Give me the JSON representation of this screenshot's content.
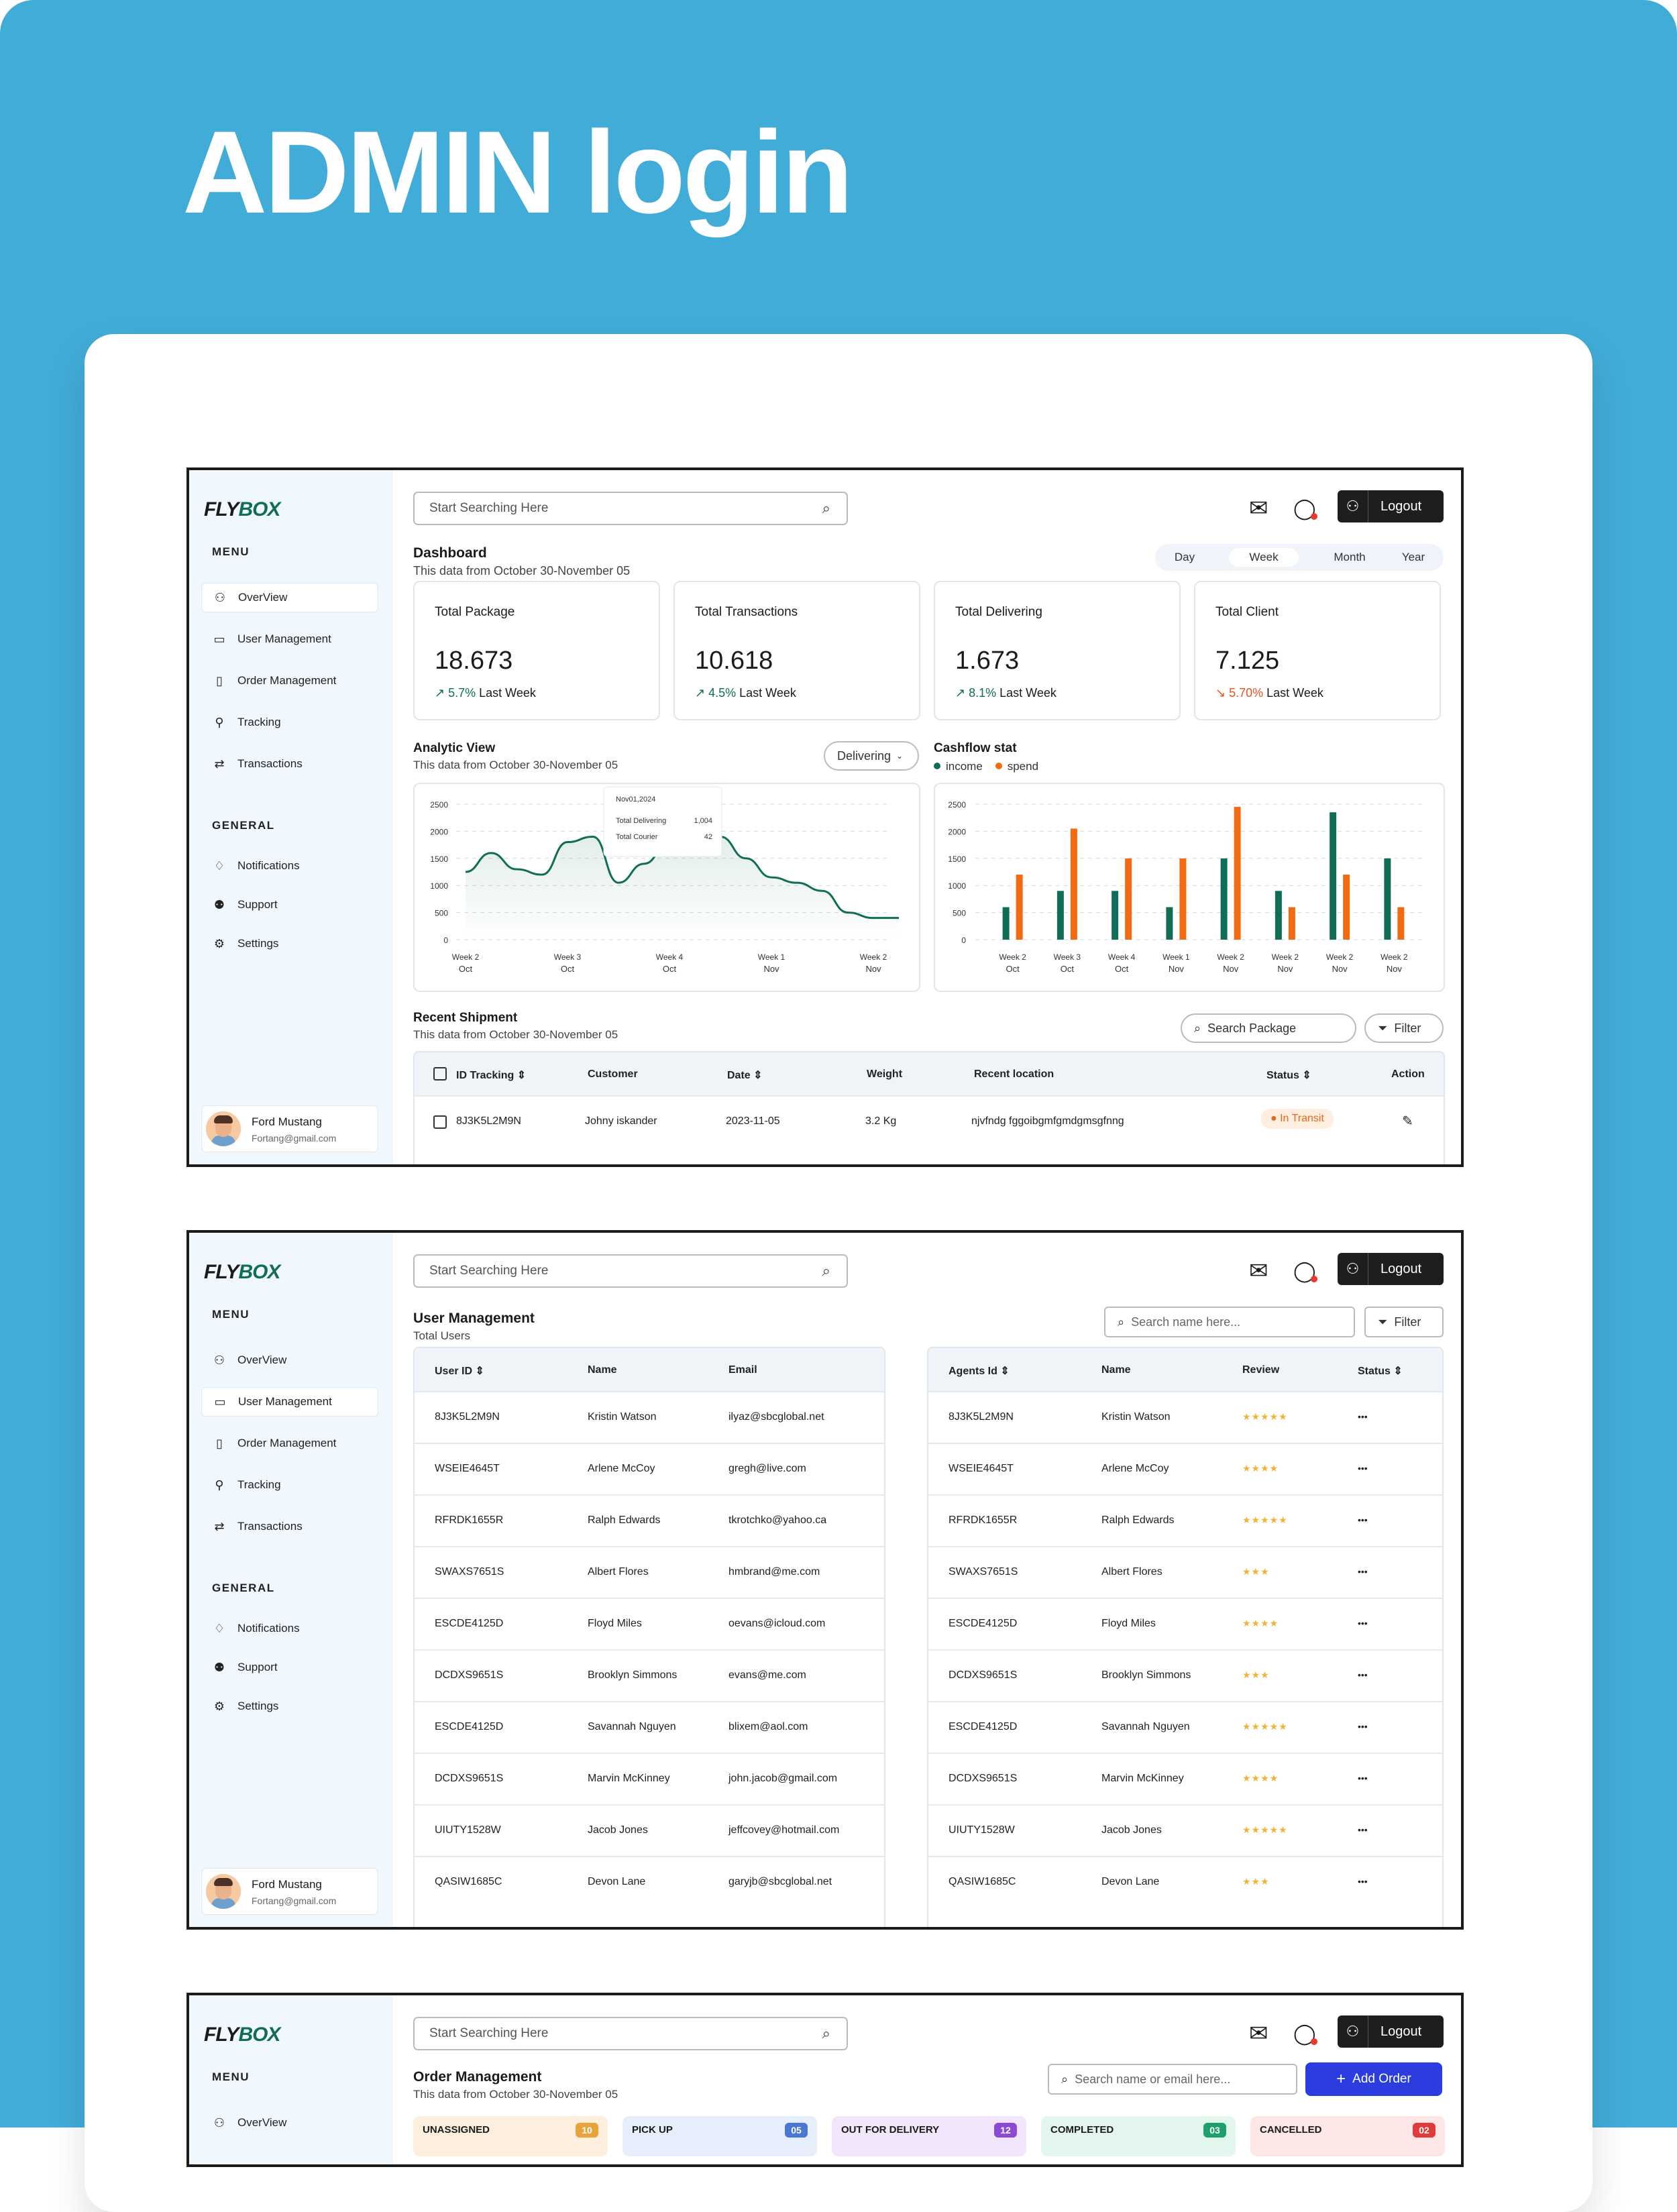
{
  "hero_title": "ADMIN login",
  "app": {
    "logo_a": "FLY",
    "logo_b": "BOX",
    "search_placeholder": "Start Searching Here",
    "logout": "Logout",
    "menu_label": "MENU",
    "general_label": "GENERAL",
    "menu": [
      "OverView",
      "User Management",
      "Order Management",
      "Tracking",
      "Transactions"
    ],
    "general": [
      "Notifications",
      "Support",
      "Settings"
    ],
    "user": {
      "name": "Ford Mustang",
      "email": "Fortang@gmail.com"
    }
  },
  "dashboard": {
    "title": "Dashboard",
    "subtitle": "This data from October 30-November 05",
    "ranges": [
      "Day",
      "Week",
      "Month",
      "Year"
    ],
    "active_range": "Week",
    "stats": [
      {
        "title": "Total Package",
        "value": "18.673",
        "change": "5.7%",
        "note": "Last Week",
        "trend": "up"
      },
      {
        "title": "Total Transactions",
        "value": "10.618",
        "change": "4.5%",
        "note": "Last Week",
        "trend": "up"
      },
      {
        "title": "Total Delivering",
        "value": "1.673",
        "change": "8.1%",
        "note": "Last Week",
        "trend": "up"
      },
      {
        "title": "Total Client",
        "value": "7.125",
        "change": "5.70%",
        "note": "Last Week",
        "trend": "down"
      }
    ],
    "analytic": {
      "title": "Analytic View",
      "subtitle": "This data from October 30-November 05",
      "filter": "Delivering",
      "tooltip": {
        "date": "Nov01,2024",
        "l1": "Total Delivering",
        "v1": "1,004",
        "l2": "Total Courier",
        "v2": "42"
      }
    },
    "cashflow": {
      "title": "Cashflow stat",
      "legend_income": "income",
      "legend_spend": "spend"
    },
    "shipment": {
      "title": "Recent Shipment",
      "subtitle": "This data from October 30-November 05",
      "search": "Search Package",
      "filter": "Filter",
      "headers": [
        "ID Tracking",
        "Customer",
        "Date",
        "Weight",
        "Recent location",
        "Status",
        "Action"
      ],
      "row": {
        "id": "8J3K5L2M9N",
        "customer": "Johny iskander",
        "date": "2023-11-05",
        "weight": "3.2 Kg",
        "location": "njvfndg fggoibgmfgmdgmsgfnng",
        "status": "In Transit"
      }
    }
  },
  "chart_data": [
    {
      "type": "line",
      "yticks": [
        "2500",
        "2000",
        "1500",
        "1000",
        "500",
        "0"
      ],
      "ylim": [
        0,
        2500
      ],
      "categories": [
        [
          "Week 2",
          "Oct"
        ],
        [
          "Week 3",
          "Oct"
        ],
        [
          "Week 4",
          "Oct"
        ],
        [
          "Week 1",
          "Nov"
        ],
        [
          "Week 2",
          "Nov"
        ]
      ],
      "x": [
        0,
        0.25,
        0.5,
        0.75,
        1,
        1.25,
        1.5,
        1.75,
        2,
        2.25,
        2.5,
        2.75,
        3,
        3.25,
        3.5,
        3.75,
        4,
        4.25
      ],
      "values": [
        1250,
        1600,
        1300,
        1200,
        1800,
        1900,
        1050,
        1400,
        1800,
        1800,
        1900,
        1500,
        1150,
        1050,
        900,
        500,
        400,
        400
      ]
    },
    {
      "type": "bar",
      "yticks": [
        "2500",
        "2000",
        "1500",
        "1000",
        "500",
        "0"
      ],
      "ylim": [
        0,
        2500
      ],
      "categories": [
        [
          "Week 2",
          "Oct"
        ],
        [
          "Week 3",
          "Oct"
        ],
        [
          "Week 4",
          "Oct"
        ],
        [
          "Week 1",
          "Nov"
        ],
        [
          "Week 2",
          "Nov"
        ],
        [
          "Week 2",
          "Nov"
        ],
        [
          "Week 2",
          "Nov"
        ],
        [
          "Week 2",
          "Nov"
        ]
      ],
      "series": [
        {
          "name": "income",
          "color": "#0f6e55",
          "values": [
            600,
            900,
            900,
            600,
            1500,
            900,
            2350,
            1500
          ]
        },
        {
          "name": "spend",
          "color": "#f26a12",
          "values": [
            1200,
            2050,
            1500,
            1500,
            2450,
            600,
            1200,
            600
          ]
        }
      ]
    }
  ],
  "users": {
    "title": "User Management",
    "subtitle": "Total Users",
    "search": "Search name here...",
    "filter": "Filter",
    "headers": [
      "User ID",
      "Name",
      "Email"
    ],
    "agent_headers": [
      "Agents Id",
      "Name",
      "Review",
      "Status"
    ],
    "rows": [
      [
        "8J3K5L2M9N",
        "Kristin Watson",
        "ilyaz@sbcglobal.net",
        "★★★★★"
      ],
      [
        "WSEIE4645T",
        "Arlene McCoy",
        "gregh@live.com",
        "★★★★"
      ],
      [
        "RFRDK1655R",
        "Ralph Edwards",
        "tkrotchko@yahoo.ca",
        "★★★★★"
      ],
      [
        "SWAXS7651S",
        "Albert Flores",
        "hmbrand@me.com",
        "★★★"
      ],
      [
        "ESCDE4125D",
        "Floyd Miles",
        "oevans@icloud.com",
        "★★★★"
      ],
      [
        "DCDXS9651S",
        "Brooklyn Simmons",
        "evans@me.com",
        "★★★"
      ],
      [
        "ESCDE4125D",
        "Savannah Nguyen",
        "blixem@aol.com",
        "★★★★★"
      ],
      [
        "DCDXS9651S",
        "Marvin McKinney",
        "john.jacob@gmail.com",
        "★★★★"
      ],
      [
        "UIUTY1528W",
        "Jacob Jones",
        "jeffcovey@hotmail.com",
        "★★★★★"
      ],
      [
        "QASIW1685C",
        "Devon Lane",
        "garyjb@sbcglobal.net",
        "★★★"
      ]
    ],
    "more": "•••"
  },
  "orders": {
    "title": "Order Management",
    "subtitle": "This data from October 30-November 05",
    "search": "Search name or email here...",
    "add": "Add Order",
    "columns": [
      {
        "label": "UNASSIGNED",
        "count": "10",
        "bg": "#fdeede",
        "badge": "#e8a33a"
      },
      {
        "label": "PICK UP",
        "count": "05",
        "bg": "#e6eefb",
        "badge": "#4a76d4"
      },
      {
        "label": "OUT FOR DELIVERY",
        "count": "12",
        "bg": "#f1e6fb",
        "badge": "#8c4ad4"
      },
      {
        "label": "COMPLETED",
        "count": "03",
        "bg": "#e2f6ee",
        "badge": "#1f9e6e"
      },
      {
        "label": "CANCELLED",
        "count": "02",
        "bg": "#fde6e6",
        "badge": "#e03a3a"
      }
    ]
  }
}
